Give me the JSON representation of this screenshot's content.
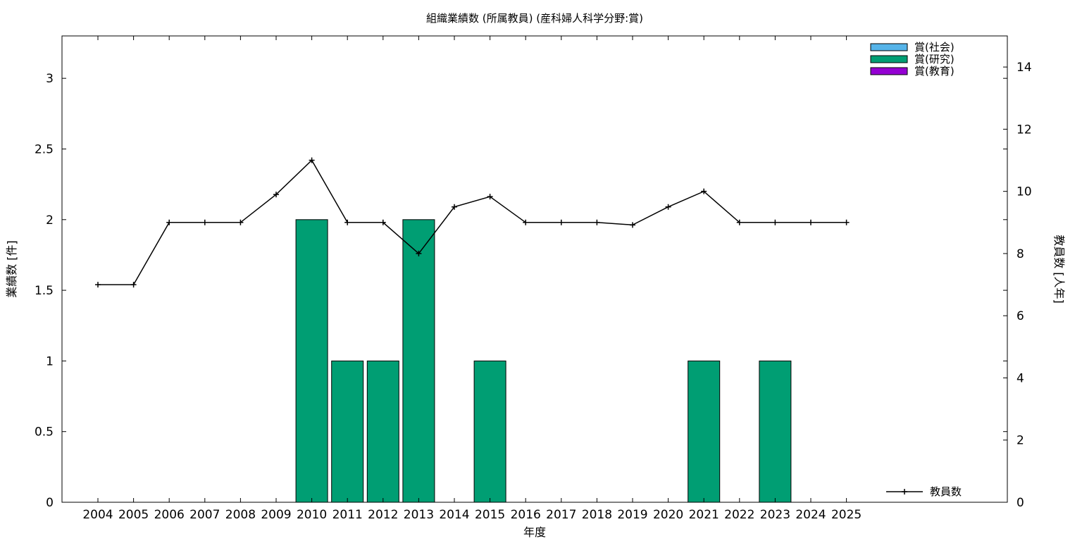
{
  "chart_data": {
    "type": "bar",
    "title": "組織業績数 (所属教員) (産科婦人科学分野:賞)",
    "xlabel": "年度",
    "ylabel": "業績数 [件]",
    "y2label": "教員数 [人年]",
    "categories": [
      "2004",
      "2005",
      "2006",
      "2007",
      "2008",
      "2009",
      "2010",
      "2011",
      "2012",
      "2013",
      "2014",
      "2015",
      "2016",
      "2017",
      "2018",
      "2019",
      "2020",
      "2021",
      "2022",
      "2023",
      "2024",
      "2025"
    ],
    "ylim": [
      0,
      3.3
    ],
    "y2lim": [
      0,
      15
    ],
    "yticks": [
      "0",
      "0.5",
      "1",
      "1.5",
      "2",
      "2.5",
      "3"
    ],
    "y2ticks": [
      "0",
      "2",
      "4",
      "6",
      "8",
      "10",
      "12",
      "14"
    ],
    "grid": false,
    "legend_position": "top-right",
    "series": [
      {
        "name": "賞(社会)",
        "kind": "bar",
        "color": "#56b4e9",
        "values": [
          0,
          0,
          0,
          0,
          0,
          0,
          0,
          0,
          0,
          0,
          0,
          0,
          0,
          0,
          0,
          0,
          0,
          0,
          0,
          0,
          0,
          0
        ]
      },
      {
        "name": "賞(研究)",
        "kind": "bar",
        "color": "#009e73",
        "values": [
          0,
          0,
          0,
          0,
          0,
          0,
          2,
          1,
          1,
          2,
          0,
          1,
          0,
          0,
          0,
          0,
          0,
          1,
          0,
          1,
          0,
          0
        ]
      },
      {
        "name": "賞(教育)",
        "kind": "bar",
        "color": "#9400d3",
        "values": [
          0,
          0,
          0,
          0,
          0,
          0,
          0,
          0,
          0,
          0,
          0,
          0,
          0,
          0,
          0,
          0,
          0,
          0,
          0,
          0,
          0,
          0
        ]
      },
      {
        "name": "教員数",
        "kind": "line",
        "axis": "y2",
        "color": "#000000",
        "values": [
          7,
          7,
          9,
          9,
          9,
          9.9,
          11,
          9,
          9,
          8,
          9.5,
          9.83,
          9,
          9,
          9,
          8.92,
          9.5,
          10,
          9,
          9,
          9,
          9
        ]
      }
    ]
  }
}
